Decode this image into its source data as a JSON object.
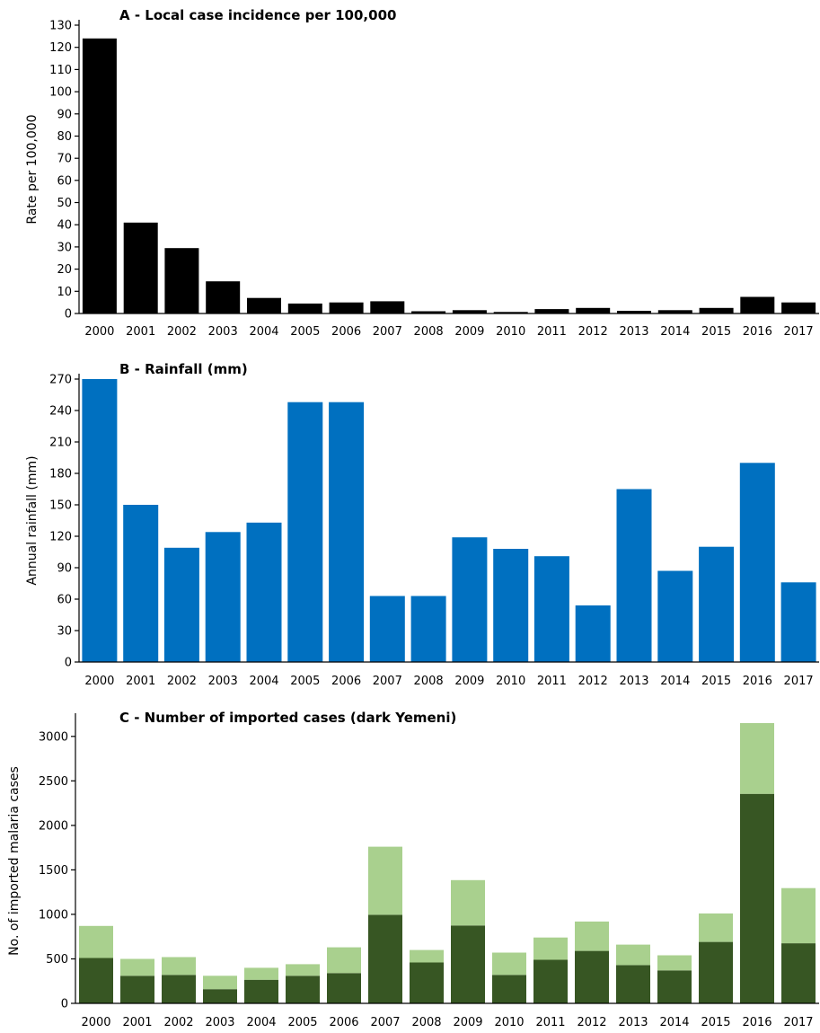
{
  "chart_data": [
    {
      "type": "bar",
      "title": "A - Local case incidence per 100,000",
      "xlabel": "",
      "ylabel": "Rate per 100,000",
      "ylim": [
        0,
        130
      ],
      "yticks": [
        0,
        10,
        20,
        30,
        40,
        50,
        60,
        70,
        80,
        90,
        100,
        110,
        120,
        130
      ],
      "grid": false,
      "categories": [
        "2000",
        "2001",
        "2002",
        "2003",
        "2004",
        "2005",
        "2006",
        "2007",
        "2008",
        "2009",
        "2010",
        "2011",
        "2012",
        "2013",
        "2014",
        "2015",
        "2016",
        "2017"
      ],
      "series": [
        {
          "values": [
            124,
            41,
            29.5,
            14.5,
            7,
            4.5,
            5,
            5.5,
            1,
            1.5,
            0.7,
            2,
            2.5,
            1.2,
            1.5,
            2.5,
            7.5,
            5
          ],
          "color": "#000000"
        }
      ]
    },
    {
      "type": "bar",
      "title": "B - Rainfall  (mm)",
      "xlabel": "",
      "ylabel": "Annual rainfall (mm)",
      "ylim": [
        0,
        270
      ],
      "yticks": [
        0,
        30,
        60,
        90,
        120,
        150,
        180,
        210,
        240,
        270
      ],
      "grid": false,
      "categories": [
        "2000",
        "2001",
        "2002",
        "2003",
        "2004",
        "2005",
        "2006",
        "2007",
        "2008",
        "2009",
        "2010",
        "2011",
        "2012",
        "2013",
        "2014",
        "2015",
        "2016",
        "2017"
      ],
      "series": [
        {
          "values": [
            270,
            150,
            109,
            124,
            133,
            248,
            248,
            63,
            63,
            119,
            108,
            101,
            54,
            165,
            87,
            110,
            190,
            76
          ],
          "color": "#0070C0"
        }
      ]
    },
    {
      "type": "bar",
      "stacked": true,
      "title": "C - Number of imported cases (dark Yemeni)",
      "xlabel": "",
      "ylabel": "No. of imported malaria cases",
      "ylim": [
        0,
        3200
      ],
      "yticks": [
        0,
        500,
        1000,
        1500,
        2000,
        2500,
        3000
      ],
      "grid": false,
      "categories": [
        "2000",
        "2001",
        "2002",
        "2003",
        "2004",
        "2005",
        "2006",
        "2007",
        "2008",
        "2009",
        "2010",
        "2011",
        "2012",
        "2013",
        "2014",
        "2015",
        "2016",
        "2017"
      ],
      "totals": [
        870,
        500,
        520,
        310,
        400,
        440,
        630,
        1760,
        600,
        1385,
        570,
        740,
        920,
        660,
        540,
        1010,
        3150,
        1295
      ],
      "series": [
        {
          "values": [
            510,
            310,
            320,
            160,
            265,
            310,
            340,
            995,
            460,
            875,
            320,
            490,
            590,
            430,
            370,
            690,
            2355,
            675
          ],
          "color": "#375623"
        },
        {
          "values": [
            360,
            190,
            200,
            150,
            135,
            130,
            290,
            765,
            140,
            510,
            250,
            250,
            330,
            230,
            170,
            320,
            795,
            620
          ],
          "color": "#A9D08E"
        }
      ]
    }
  ]
}
